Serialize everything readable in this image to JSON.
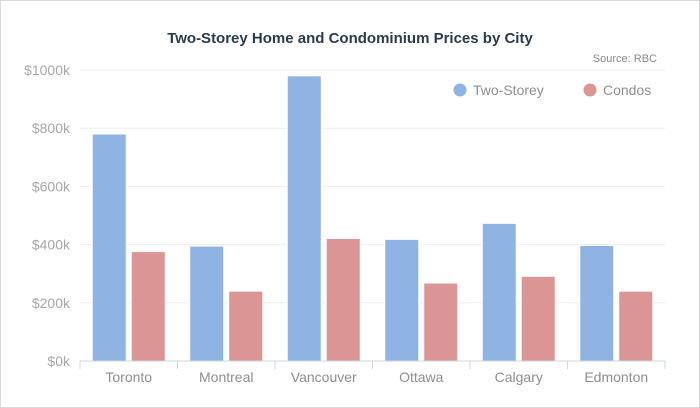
{
  "chart_data": {
    "type": "bar",
    "title": "Two-Storey Home and Condominium Prices by City",
    "subtitle": "Source: RBC",
    "categories": [
      "Toronto",
      "Montreal",
      "Vancouver",
      "Ottawa",
      "Calgary",
      "Edmonton"
    ],
    "series": [
      {
        "name": "Two-Storey",
        "color": "#8fb4e3",
        "values": [
          780,
          395,
          980,
          418,
          473,
          397
        ]
      },
      {
        "name": "Condos",
        "color": "#da9594",
        "values": [
          376,
          240,
          421,
          268,
          291,
          240
        ]
      }
    ],
    "ylim": [
      0,
      1000
    ],
    "yticks": [
      0,
      200,
      400,
      600,
      800,
      1000
    ],
    "ytick_labels": [
      "$0k",
      "$200k",
      "$400k",
      "$600k",
      "$800k",
      "$1000k"
    ],
    "grid": true,
    "legend_position": "top-right"
  }
}
